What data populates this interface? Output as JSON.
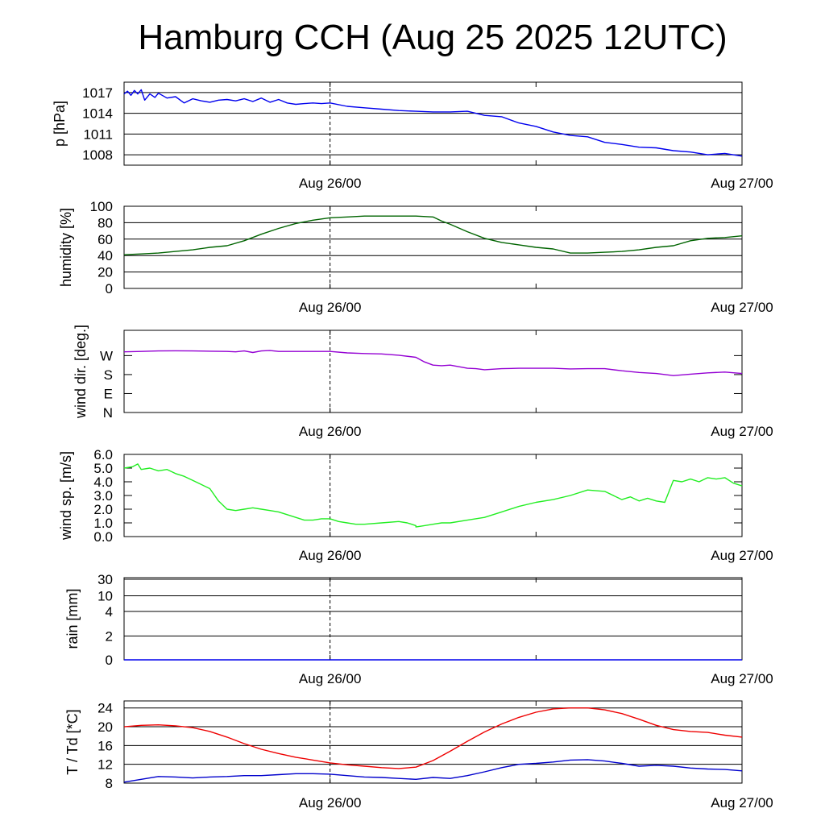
{
  "title": "Hamburg CCH (Aug 25 2025 12UTC)",
  "colors": {
    "pressure": "#0000ee",
    "humidity": "#006400",
    "wind_dir": "#9400d3",
    "wind_sp": "#22ee22",
    "rain": "#0000ee",
    "temperature": "#ee0000",
    "dewpoint": "#0000cc",
    "grid": "#000000"
  },
  "x_axis": {
    "start": "Aug 25 12UTC",
    "end": "Aug 27 00UTC",
    "tick_labels": [
      {
        "hour": 12,
        "label": "Aug 26/00"
      },
      {
        "hour": 36,
        "label": "Aug 27/00"
      }
    ],
    "minor_tick_hour": 24,
    "dashed_marker_hour": 12
  },
  "chart_data": [
    {
      "type": "line",
      "ylabel": "p [hPa]",
      "ylim": [
        1006.5,
        1018.5
      ],
      "yticks": [
        1008,
        1011,
        1014,
        1017
      ],
      "ytick_labels": [
        "1008",
        "1011",
        "1014",
        "1017"
      ],
      "grid": true,
      "series": [
        {
          "color_key": "pressure",
          "x": [
            0,
            0.2,
            0.4,
            0.6,
            0.8,
            1,
            1.2,
            1.5,
            1.8,
            2,
            2.5,
            3,
            3.5,
            4,
            4.5,
            5,
            5.5,
            6,
            6.5,
            7,
            7.5,
            8,
            8.5,
            9,
            9.5,
            10,
            10.5,
            11,
            11.5,
            12,
            13,
            14,
            15,
            16,
            17,
            18,
            19,
            20,
            21,
            22,
            23,
            24,
            25,
            26,
            27,
            28,
            29,
            30,
            31,
            32,
            33,
            34,
            35,
            36
          ],
          "y": [
            1016.8,
            1017.2,
            1016.6,
            1017.3,
            1016.8,
            1017.4,
            1015.9,
            1016.8,
            1016.3,
            1016.9,
            1016.2,
            1016.4,
            1015.5,
            1016.1,
            1015.8,
            1015.6,
            1015.9,
            1016.0,
            1015.8,
            1016.1,
            1015.7,
            1016.2,
            1015.6,
            1016.0,
            1015.5,
            1015.3,
            1015.4,
            1015.5,
            1015.4,
            1015.5,
            1015.0,
            1014.8,
            1014.6,
            1014.4,
            1014.3,
            1014.2,
            1014.2,
            1014.3,
            1013.7,
            1013.5,
            1012.6,
            1012.1,
            1011.3,
            1010.8,
            1010.6,
            1009.8,
            1009.5,
            1009.1,
            1009.0,
            1008.6,
            1008.4,
            1008.0,
            1008.2,
            1007.8
          ]
        }
      ]
    },
    {
      "type": "line",
      "ylabel": "humidity [%]",
      "ylim": [
        0,
        100
      ],
      "yticks": [
        0,
        20,
        40,
        60,
        80,
        100
      ],
      "ytick_labels": [
        "0",
        "20",
        "40",
        "60",
        "80",
        "100"
      ],
      "grid": true,
      "series": [
        {
          "color_key": "humidity",
          "x": [
            0,
            1,
            2,
            3,
            4,
            5,
            6,
            7,
            8,
            9,
            10,
            11,
            12,
            13,
            14,
            15,
            16,
            17,
            18,
            18.5,
            19,
            20,
            21,
            22,
            23,
            24,
            25,
            26,
            27,
            28,
            29,
            30,
            31,
            32,
            33,
            34,
            35,
            36
          ],
          "y": [
            41,
            42,
            43,
            45,
            47,
            50,
            52,
            58,
            66,
            73,
            79,
            83,
            86,
            87,
            88,
            88,
            88,
            88,
            87,
            82,
            78,
            69,
            61,
            56,
            53,
            50,
            48,
            43,
            43,
            44,
            45,
            47,
            50,
            52,
            58,
            61,
            62,
            64
          ]
        }
      ]
    },
    {
      "type": "line",
      "ylabel": "wind dir. [deg.]",
      "ylim": [
        0,
        390
      ],
      "yticks": [
        0,
        90,
        180,
        270
      ],
      "ytick_labels": [
        "N",
        "E",
        "S",
        "W"
      ],
      "grid": false,
      "series": [
        {
          "color_key": "wind_dir",
          "x": [
            0,
            1,
            2,
            3,
            4,
            5,
            6,
            6.5,
            7,
            7.5,
            8,
            8.5,
            9,
            10,
            11,
            12,
            13,
            14,
            15,
            16,
            17,
            17.5,
            18,
            18.5,
            19,
            20,
            20.5,
            21,
            22,
            23,
            24,
            25,
            26,
            27,
            28,
            29,
            30,
            31,
            32,
            33,
            34,
            35,
            36
          ],
          "y": [
            288,
            290,
            292,
            293,
            292,
            291,
            290,
            288,
            292,
            285,
            292,
            294,
            290,
            290,
            290,
            290,
            283,
            280,
            278,
            272,
            262,
            240,
            225,
            222,
            225,
            210,
            208,
            203,
            208,
            210,
            210,
            210,
            207,
            208,
            208,
            198,
            190,
            185,
            175,
            182,
            188,
            192,
            185
          ]
        }
      ]
    },
    {
      "type": "line",
      "ylabel": "wind sp. [m/s]",
      "ylim": [
        0,
        6
      ],
      "yticks": [
        0,
        1,
        2,
        3,
        4,
        5,
        6
      ],
      "ytick_labels": [
        "0.0",
        "1.0",
        "2.0",
        "3.0",
        "4.0",
        "5.0",
        "6.0"
      ],
      "grid": false,
      "series": [
        {
          "color_key": "wind_sp",
          "x": [
            0,
            0.5,
            0.8,
            1,
            1.5,
            2,
            2.5,
            3,
            3.5,
            4,
            4.5,
            5,
            5.5,
            6,
            6.5,
            7,
            7.5,
            8,
            8.5,
            9,
            10,
            10.5,
            11,
            11.5,
            12,
            12.5,
            13,
            13.5,
            14,
            15,
            16,
            16.5,
            17,
            17,
            17.5,
            18,
            18.5,
            19,
            20,
            21,
            22,
            23,
            24,
            25,
            26,
            27,
            28,
            29,
            29.5,
            30,
            30.5,
            31,
            31.5,
            32,
            32.5,
            33,
            33.5,
            34,
            34.5,
            35,
            35.5,
            36
          ],
          "y": [
            5.0,
            5.1,
            5.3,
            4.9,
            5.0,
            4.8,
            4.9,
            4.6,
            4.4,
            4.1,
            3.8,
            3.5,
            2.6,
            2.0,
            1.9,
            2.0,
            2.1,
            2.0,
            1.9,
            1.8,
            1.4,
            1.2,
            1.2,
            1.3,
            1.3,
            1.1,
            1.0,
            0.9,
            0.9,
            1.0,
            1.1,
            1.0,
            0.8,
            0.7,
            0.8,
            0.9,
            1.0,
            1.0,
            1.2,
            1.4,
            1.8,
            2.2,
            2.5,
            2.7,
            3.0,
            3.4,
            3.3,
            2.7,
            2.9,
            2.6,
            2.8,
            2.6,
            2.5,
            4.1,
            4.0,
            4.2,
            4.0,
            4.3,
            4.2,
            4.3,
            3.9,
            3.7
          ]
        }
      ]
    },
    {
      "type": "line",
      "ylabel": "rain [mm]",
      "scale": "pseudo-log",
      "yticks": [
        0,
        2,
        4,
        10,
        30
      ],
      "ytick_labels": [
        "0",
        "2",
        "4",
        "10",
        "30"
      ],
      "grid": true,
      "series": [
        {
          "color_key": "rain",
          "x": [
            0,
            36
          ],
          "y": [
            0,
            0
          ]
        }
      ]
    },
    {
      "type": "line",
      "ylabel": "T / Td [*C]",
      "ylim": [
        8,
        25.5
      ],
      "yticks": [
        8,
        12,
        16,
        20,
        24
      ],
      "ytick_labels": [
        "8",
        "12",
        "16",
        "20",
        "24"
      ],
      "grid": true,
      "series": [
        {
          "color_key": "temperature",
          "x": [
            0,
            1,
            2,
            3,
            4,
            5,
            6,
            7,
            8,
            9,
            10,
            11,
            12,
            13,
            14,
            15,
            16,
            17,
            18,
            19,
            20,
            21,
            22,
            23,
            24,
            25,
            26,
            27,
            28,
            29,
            30,
            31,
            32,
            33,
            34,
            35,
            36
          ],
          "y": [
            20.0,
            20.3,
            20.4,
            20.2,
            19.8,
            19.0,
            17.8,
            16.4,
            15.2,
            14.3,
            13.5,
            12.9,
            12.3,
            11.9,
            11.6,
            11.3,
            11.1,
            11.4,
            12.8,
            14.8,
            16.9,
            18.9,
            20.6,
            22.0,
            23.1,
            23.8,
            24.0,
            24.0,
            23.6,
            22.8,
            21.6,
            20.3,
            19.4,
            19.0,
            18.8,
            18.2,
            17.8
          ]
        },
        {
          "color_key": "dewpoint",
          "x": [
            0,
            1,
            2,
            3,
            4,
            5,
            6,
            7,
            8,
            9,
            10,
            11,
            12,
            13,
            14,
            15,
            16,
            17,
            18,
            19,
            20,
            21,
            22,
            23,
            24,
            25,
            26,
            27,
            28,
            29,
            30,
            31,
            32,
            33,
            34,
            35,
            36
          ],
          "y": [
            8.2,
            8.8,
            9.4,
            9.3,
            9.1,
            9.3,
            9.4,
            9.6,
            9.6,
            9.8,
            10.0,
            10.0,
            9.9,
            9.6,
            9.3,
            9.2,
            9.0,
            8.8,
            9.2,
            9.0,
            9.6,
            10.4,
            11.3,
            12.0,
            12.2,
            12.5,
            12.9,
            13.0,
            12.7,
            12.2,
            11.6,
            11.8,
            11.6,
            11.2,
            11.0,
            10.9,
            10.6
          ]
        }
      ]
    }
  ]
}
